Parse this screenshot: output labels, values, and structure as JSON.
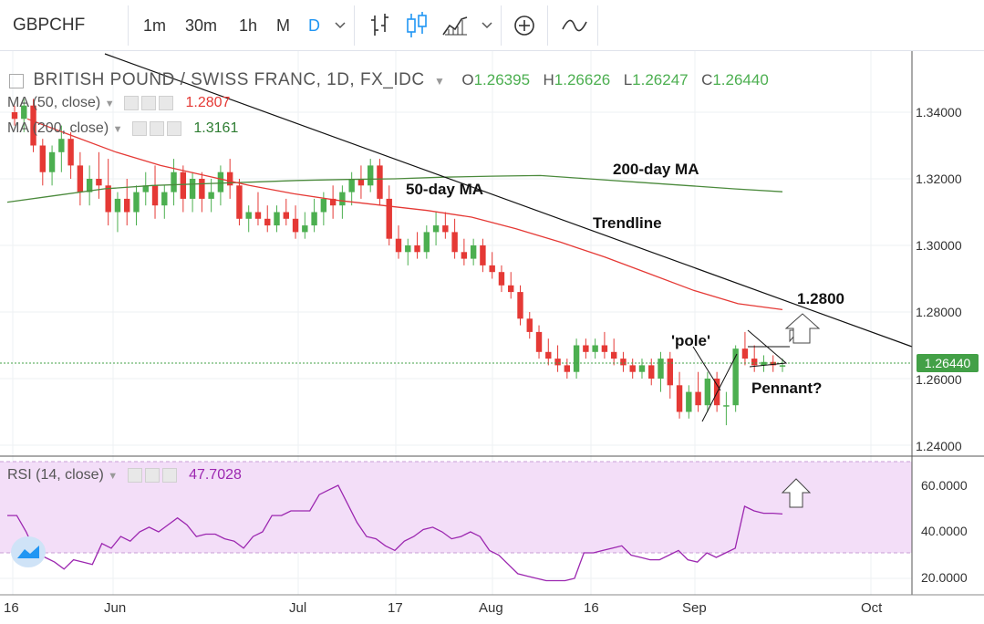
{
  "toolbar": {
    "symbol": "GBPCHF",
    "intervals": [
      "1m",
      "30m",
      "1h",
      "M",
      "D"
    ],
    "active_interval": "D",
    "icons": [
      "chevron-down-icon",
      "bar-style-icon",
      "candle-style-icon",
      "area-style-icon",
      "chevron-down-icon",
      "add-indicator-icon",
      "compare-icon"
    ]
  },
  "legend": {
    "title": "BRITISH POUND / SWISS FRANC, 1D, FX_IDC",
    "open_label": "O",
    "open": "1.26395",
    "high_label": "H",
    "high": "1.26626",
    "low_label": "L",
    "low": "1.26247",
    "close_label": "C",
    "close": "1.26440",
    "ma50_label": "MA (50, close)",
    "ma50_value": "1.2807",
    "ma200_label": "MA (200, close)",
    "ma200_value": "1.3161",
    "rsi_label": "RSI (14, close)",
    "rsi_value": "47.7028"
  },
  "last_price": "1.26440",
  "annotations": {
    "ma200": "200-day MA",
    "ma50": "50-day MA",
    "trendline": "Trendline",
    "target": "1.2800",
    "pole": "'pole'",
    "pennant": "Pennant?"
  },
  "colors": {
    "up": "#4caf50",
    "down": "#e53935",
    "ma50": "#e53935",
    "ma200": "#4b8a3c",
    "rsi": "#9c27b0",
    "rsi_band": "#f3def8",
    "accent": "#2196f3"
  },
  "chart_data": [
    {
      "type": "candlestick",
      "x_tick_labels": [
        "16",
        "Jun",
        "Jul",
        "17",
        "Aug",
        "16",
        "Sep",
        "Oct"
      ],
      "y_tick_labels": [
        "1.34000",
        "1.32000",
        "1.30000",
        "1.28000",
        "1.26000",
        "1.24000"
      ],
      "ylim": [
        1.2375,
        1.3475
      ],
      "series": [
        {
          "name": "price",
          "ohlc": [
            [
              1.34,
              1.342,
              1.336,
              1.338
            ],
            [
              1.338,
              1.344,
              1.334,
              1.342
            ],
            [
              1.342,
              1.344,
              1.328,
              1.33
            ],
            [
              1.33,
              1.332,
              1.318,
              1.322
            ],
            [
              1.322,
              1.33,
              1.318,
              1.328
            ],
            [
              1.328,
              1.336,
              1.322,
              1.332
            ],
            [
              1.332,
              1.334,
              1.32,
              1.324
            ],
            [
              1.324,
              1.328,
              1.312,
              1.316
            ],
            [
              1.316,
              1.324,
              1.312,
              1.32
            ],
            [
              1.32,
              1.328,
              1.314,
              1.318
            ],
            [
              1.318,
              1.326,
              1.306,
              1.31
            ],
            [
              1.31,
              1.316,
              1.304,
              1.314
            ],
            [
              1.314,
              1.32,
              1.306,
              1.31
            ],
            [
              1.31,
              1.318,
              1.306,
              1.316
            ],
            [
              1.316,
              1.322,
              1.312,
              1.318
            ],
            [
              1.318,
              1.324,
              1.308,
              1.312
            ],
            [
              1.312,
              1.318,
              1.308,
              1.316
            ],
            [
              1.316,
              1.326,
              1.312,
              1.322
            ],
            [
              1.322,
              1.324,
              1.31,
              1.314
            ],
            [
              1.314,
              1.322,
              1.31,
              1.32
            ],
            [
              1.32,
              1.322,
              1.31,
              1.314
            ],
            [
              1.314,
              1.32,
              1.31,
              1.316
            ],
            [
              1.316,
              1.324,
              1.312,
              1.322
            ],
            [
              1.322,
              1.326,
              1.314,
              1.318
            ],
            [
              1.318,
              1.32,
              1.306,
              1.308
            ],
            [
              1.308,
              1.312,
              1.304,
              1.31
            ],
            [
              1.31,
              1.316,
              1.306,
              1.308
            ],
            [
              1.308,
              1.312,
              1.304,
              1.306
            ],
            [
              1.306,
              1.312,
              1.304,
              1.31
            ],
            [
              1.31,
              1.314,
              1.306,
              1.308
            ],
            [
              1.308,
              1.312,
              1.302,
              1.304
            ],
            [
              1.304,
              1.31,
              1.302,
              1.306
            ],
            [
              1.306,
              1.314,
              1.304,
              1.31
            ],
            [
              1.31,
              1.316,
              1.306,
              1.314
            ],
            [
              1.314,
              1.318,
              1.308,
              1.312
            ],
            [
              1.312,
              1.318,
              1.308,
              1.316
            ],
            [
              1.316,
              1.322,
              1.312,
              1.32
            ],
            [
              1.32,
              1.324,
              1.314,
              1.318
            ],
            [
              1.318,
              1.326,
              1.316,
              1.324
            ],
            [
              1.324,
              1.326,
              1.312,
              1.314
            ],
            [
              1.314,
              1.318,
              1.3,
              1.302
            ],
            [
              1.302,
              1.306,
              1.296,
              1.298
            ],
            [
              1.298,
              1.302,
              1.294,
              1.3
            ],
            [
              1.3,
              1.304,
              1.296,
              1.298
            ],
            [
              1.298,
              1.306,
              1.296,
              1.304
            ],
            [
              1.304,
              1.31,
              1.3,
              1.306
            ],
            [
              1.306,
              1.31,
              1.302,
              1.304
            ],
            [
              1.304,
              1.308,
              1.296,
              1.298
            ],
            [
              1.298,
              1.302,
              1.294,
              1.296
            ],
            [
              1.296,
              1.302,
              1.294,
              1.3
            ],
            [
              1.3,
              1.302,
              1.292,
              1.294
            ],
            [
              1.294,
              1.298,
              1.29,
              1.292
            ],
            [
              1.292,
              1.294,
              1.286,
              1.288
            ],
            [
              1.288,
              1.292,
              1.284,
              1.286
            ],
            [
              1.286,
              1.288,
              1.276,
              1.278
            ],
            [
              1.278,
              1.28,
              1.272,
              1.274
            ],
            [
              1.274,
              1.276,
              1.266,
              1.268
            ],
            [
              1.268,
              1.272,
              1.264,
              1.266
            ],
            [
              1.266,
              1.27,
              1.262,
              1.264
            ],
            [
              1.264,
              1.266,
              1.26,
              1.262
            ],
            [
              1.262,
              1.272,
              1.26,
              1.27
            ],
            [
              1.27,
              1.272,
              1.266,
              1.268
            ],
            [
              1.268,
              1.272,
              1.266,
              1.27
            ],
            [
              1.27,
              1.274,
              1.266,
              1.268
            ],
            [
              1.268,
              1.272,
              1.264,
              1.266
            ],
            [
              1.266,
              1.268,
              1.262,
              1.264
            ],
            [
              1.264,
              1.266,
              1.26,
              1.262
            ],
            [
              1.262,
              1.266,
              1.26,
              1.264
            ],
            [
              1.264,
              1.266,
              1.258,
              1.26
            ],
            [
              1.26,
              1.268,
              1.256,
              1.266
            ],
            [
              1.266,
              1.268,
              1.254,
              1.258
            ],
            [
              1.258,
              1.262,
              1.248,
              1.25
            ],
            [
              1.25,
              1.258,
              1.248,
              1.256
            ],
            [
              1.256,
              1.262,
              1.25,
              1.252
            ],
            [
              1.252,
              1.262,
              1.25,
              1.26
            ],
            [
              1.26,
              1.262,
              1.25,
              1.252
            ],
            [
              1.252,
              1.256,
              1.246,
              1.252
            ],
            [
              1.252,
              1.27,
              1.25,
              1.269
            ],
            [
              1.269,
              1.274,
              1.264,
              1.266
            ],
            [
              1.266,
              1.27,
              1.262,
              1.264
            ],
            [
              1.264,
              1.267,
              1.262,
              1.265
            ],
            [
              1.265,
              1.267,
              1.262,
              1.264
            ],
            [
              1.264,
              1.266,
              1.262,
              1.264
            ]
          ]
        },
        {
          "name": "MA (50, close)",
          "values": [
            1.338,
            1.333,
            1.328,
            1.324,
            1.321,
            1.318,
            1.3155,
            1.3135,
            1.312,
            1.3105,
            1.3085,
            1.305,
            1.301,
            1.2965,
            1.2915,
            1.2865,
            1.2825,
            1.2807
          ]
        },
        {
          "name": "MA (200, close)",
          "values": [
            1.313,
            1.315,
            1.317,
            1.318,
            1.3185,
            1.319,
            1.3195,
            1.3198,
            1.32,
            1.3205,
            1.3208,
            1.321,
            1.32,
            1.319,
            1.318,
            1.317,
            1.3161
          ]
        }
      ]
    },
    {
      "type": "line",
      "title": "RSI (14, close)",
      "y_tick_labels": [
        "60.0000",
        "40.0000",
        "20.0000"
      ],
      "ylim": [
        14,
        72
      ],
      "band": [
        30,
        70
      ],
      "series": [
        {
          "name": "RSI (14, close)",
          "values": [
            47,
            47,
            40,
            31,
            29,
            27,
            24,
            28,
            27,
            26,
            35,
            33,
            38,
            36,
            40,
            42,
            40,
            43,
            46,
            43,
            38,
            39,
            39,
            37,
            36,
            33,
            38,
            40,
            47,
            47,
            49,
            49,
            49,
            56,
            58,
            60,
            52,
            44,
            38,
            37,
            34,
            32,
            36,
            38,
            41,
            42,
            40,
            37,
            38,
            40,
            38,
            32,
            30,
            26,
            22,
            21,
            20,
            19,
            19,
            19,
            20,
            31,
            31,
            32,
            33,
            34,
            30,
            29,
            28,
            28,
            30,
            32,
            28,
            27,
            31,
            29,
            31,
            33,
            51,
            49,
            48,
            48,
            47.7
          ]
        }
      ]
    }
  ]
}
